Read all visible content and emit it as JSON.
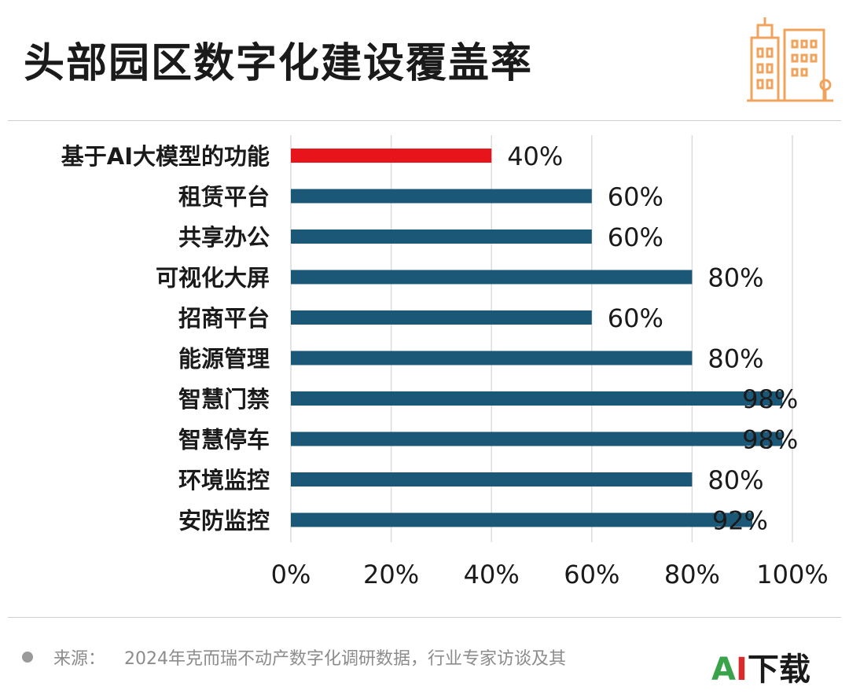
{
  "title": "头部园区数字化建设覆盖率",
  "footer": {
    "label": "来源：",
    "text": "2024年克而瑞不动产数字化调研数据，行业专家访谈及其"
  },
  "badge": {
    "part1": "A",
    "part2": "I",
    "part3": "下载"
  },
  "colors": {
    "highlight": "#e8141b",
    "bar": "#1b5878",
    "grid": "#dcdcdc"
  },
  "chart_data": {
    "type": "bar",
    "orientation": "horizontal",
    "categories": [
      "基于AI大模型的功能",
      "租赁平台",
      "共享办公",
      "可视化大屏",
      "招商平台",
      "能源管理",
      "智慧门禁",
      "智慧停车",
      "环境监控",
      "安防监控"
    ],
    "values": [
      40,
      60,
      60,
      80,
      60,
      80,
      98,
      98,
      80,
      92
    ],
    "data_labels": [
      "40%",
      "60%",
      "60%",
      "80%",
      "60%",
      "80%",
      "98%",
      "98%",
      "80%",
      "92%"
    ],
    "highlight_index": 0,
    "xlim": [
      0,
      100
    ],
    "xticks": [
      0,
      20,
      40,
      60,
      80,
      100
    ],
    "xtick_labels": [
      "0%",
      "20%",
      "40%",
      "60%",
      "80%",
      "100%"
    ],
    "grid": "vertical",
    "unit": "%"
  }
}
